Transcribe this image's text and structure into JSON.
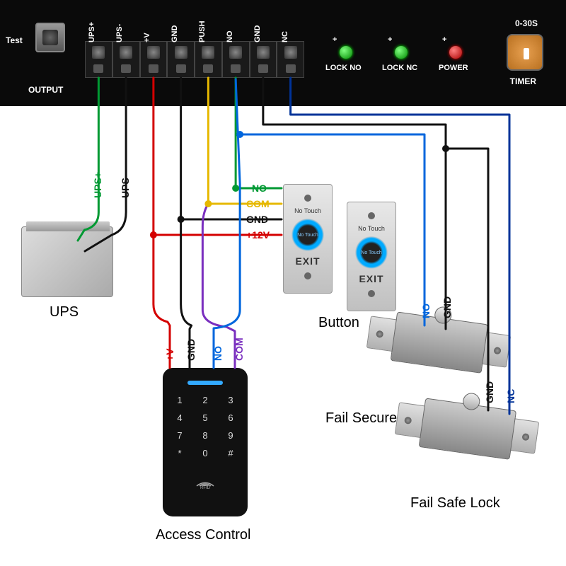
{
  "board": {
    "terminals": [
      "UPS+",
      "UPS-",
      "+V",
      "GND",
      "PUSH",
      "NO",
      "GND",
      "NC"
    ],
    "test_label": "Test",
    "output_label": "OUTPUT",
    "timer_range_label": "0-30S",
    "timer_label": "TIMER",
    "leds": [
      {
        "name": "lock-no",
        "label": "LOCK NO",
        "color": "green",
        "plus": "+"
      },
      {
        "name": "lock-nc",
        "label": "LOCK NC",
        "color": "green",
        "plus": "+"
      },
      {
        "name": "power",
        "label": "POWER",
        "color": "red",
        "plus": "+"
      }
    ]
  },
  "wires": {
    "colors": {
      "ups_plus": "#009933",
      "ups_minus": "#111111",
      "plus_v": "#d40000",
      "gnd": "#111111",
      "push_yellow": "#e6b800",
      "no_green": "#009933",
      "no_blue": "#0066dd",
      "gnd2": "#111111",
      "nc_blue": "#003399",
      "com_purple": "#7a2fbf"
    },
    "stroke_width": 3
  },
  "wire_labels": {
    "ups_plus_v": "UPS+",
    "ups_minus_v": "UPS-",
    "ac_plus_v": "+V",
    "ac_gnd": "GND",
    "ac_no": "NO",
    "ac_com": "COM",
    "btn_no": "NO",
    "btn_com": "COM",
    "btn_gnd": "GND",
    "btn_12v": "+12V",
    "fs_no": "NO",
    "fs_gnd": "GND",
    "fsl_gnd": "GND",
    "fsl_nc": "NC"
  },
  "components": {
    "ups": "UPS",
    "access_control": "Access Control",
    "button": "Button",
    "fail_secure": "Fail Secure Lock",
    "fail_safe": "Fail Safe Lock"
  },
  "keypad": {
    "keys": [
      "1",
      "2",
      "3",
      "4",
      "5",
      "6",
      "7",
      "8",
      "9",
      "*",
      "0",
      "#"
    ],
    "rfid_label": "RFID"
  },
  "exit_button": {
    "top_label": "No Touch",
    "center_label": "No Touch",
    "bottom_label": "EXIT"
  }
}
